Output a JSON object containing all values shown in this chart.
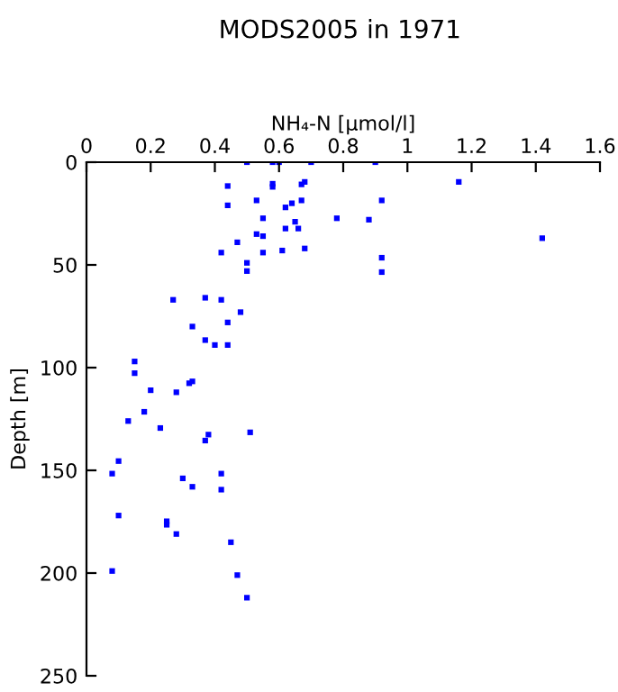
{
  "chart_data": {
    "type": "scatter",
    "title": "MODS2005 in 1971",
    "xlabel": "NH₄-N [µmol/l]",
    "ylabel": "Depth [m]",
    "xlim": [
      0,
      1.6
    ],
    "xticks": [
      0,
      0.2,
      0.4,
      0.6,
      0.8,
      1,
      1.2,
      1.4,
      1.6
    ],
    "ylim": [
      250,
      0
    ],
    "yticks": [
      0,
      50,
      100,
      150,
      200,
      250
    ],
    "marker": "square",
    "grid": false,
    "legend": false,
    "series": [
      {
        "color": "#0000ff",
        "x": [
          0.5,
          0.58,
          0.6,
          0.7,
          0.9,
          0.44,
          0.58,
          0.58,
          0.67,
          0.68,
          1.16,
          0.44,
          0.53,
          0.62,
          0.64,
          0.67,
          0.92,
          0.55,
          0.78,
          0.65,
          0.88,
          0.62,
          0.66,
          0.53,
          0.55,
          1.42,
          0.47,
          0.42,
          0.55,
          0.61,
          0.68,
          0.92,
          0.5,
          0.5,
          0.92,
          0.27,
          0.37,
          0.42,
          0.48,
          0.33,
          0.44,
          0.37,
          0.4,
          0.44,
          0.15,
          0.15,
          0.2,
          0.28,
          0.32,
          0.33,
          0.18,
          0.13,
          0.23,
          0.38,
          0.37,
          0.51,
          0.1,
          0.08,
          0.3,
          0.33,
          0.42,
          0.42,
          0.1,
          0.25,
          0.25,
          0.28,
          0.45,
          0.08,
          0.47,
          0.5
        ],
        "values": [
          0,
          0,
          0,
          0,
          0,
          11.6,
          10.5,
          12,
          10.8,
          9.6,
          9.6,
          21,
          18.6,
          22,
          20,
          18.6,
          18.6,
          27.3,
          27.3,
          29,
          28,
          32.3,
          32.3,
          35,
          36,
          37,
          39,
          44,
          44,
          43,
          42,
          46.5,
          49,
          53,
          53.5,
          67,
          66,
          67,
          73,
          80,
          78,
          86.6,
          89,
          89,
          97,
          102.7,
          111,
          112,
          107.6,
          106.7,
          121.5,
          126,
          129.4,
          132.6,
          135.5,
          131.5,
          145.5,
          151.6,
          153.9,
          158,
          151.6,
          159.4,
          172,
          174.8,
          176.5,
          181,
          185,
          199,
          201,
          212
        ]
      }
    ]
  }
}
